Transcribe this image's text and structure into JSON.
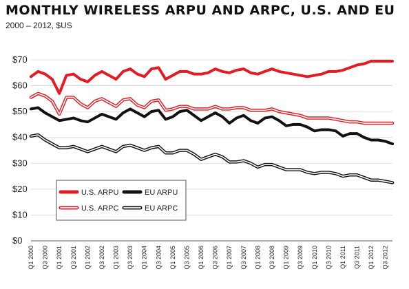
{
  "chart_data": {
    "type": "line",
    "title": "MONTHLY WIRELESS ARPU AND ARPC, U.S. AND EU",
    "subtitle": "2000 – 2012, $US",
    "xlabel": "",
    "ylabel": "",
    "ylim": [
      0,
      70
    ],
    "y_ticks": [
      0,
      10,
      20,
      30,
      40,
      50,
      60,
      70
    ],
    "y_tick_prefix": "$",
    "grid": "horizontal",
    "legend_position": "lower-left",
    "x": [
      "Q1 2000",
      "Q2 2000",
      "Q3 2000",
      "Q4 2000",
      "Q1 2001",
      "Q2 2001",
      "Q3 2001",
      "Q4 2001",
      "Q1 2002",
      "Q2 2002",
      "Q3 2002",
      "Q4 2002",
      "Q1 2003",
      "Q2 2003",
      "Q3 2003",
      "Q4 2003",
      "Q1 2004",
      "Q2 2004",
      "Q3 2004",
      "Q4 2004",
      "Q1 2005",
      "Q2 2005",
      "Q3 2005",
      "Q4 2005",
      "Q1 2006",
      "Q2 2006",
      "Q3 2006",
      "Q4 2006",
      "Q1 2007",
      "Q2 2007",
      "Q3 2007",
      "Q4 2007",
      "Q1 2008",
      "Q2 2008",
      "Q3 2008",
      "Q4 2008",
      "Q1 2009",
      "Q2 2009",
      "Q3 2009",
      "Q4 2009",
      "Q1 2010",
      "Q2 2010",
      "Q3 2010",
      "Q4 2010",
      "Q1 2011",
      "Q2 2011",
      "Q3 2011",
      "Q4 2011",
      "Q1 2012",
      "Q2 2012",
      "Q3 2012",
      "Q4 2012"
    ],
    "x_tick_labels": [
      "Q1 2000",
      "Q3 2000",
      "Q1 2001",
      "Q3 2001",
      "Q1 2002",
      "Q3 2002",
      "Q1 2003",
      "Q3 2003",
      "Q1 2004",
      "Q3 2004",
      "Q1 2005",
      "Q3 2005",
      "Q1 2006",
      "Q3 2006",
      "Q1 2007",
      "Q3 2007",
      "Q1 2008",
      "Q3 2008",
      "Q1 2009",
      "Q3 2009",
      "Q1 2010",
      "Q3 2010",
      "Q1 2011",
      "Q3 2011",
      "Q1 2012",
      "Q3 2012"
    ],
    "series": [
      {
        "name": "U.S. ARPU",
        "color": "#e31b23",
        "style": "solid",
        "values": [
          63.5,
          65.5,
          64.5,
          62.5,
          57.0,
          64.0,
          64.5,
          62.5,
          61.5,
          64.0,
          65.5,
          64.0,
          62.5,
          65.5,
          66.5,
          64.5,
          63.5,
          66.5,
          67.0,
          62.5,
          64.0,
          65.5,
          65.5,
          64.5,
          64.5,
          65.0,
          66.5,
          65.5,
          65.0,
          66.0,
          66.5,
          65.0,
          64.5,
          65.5,
          66.5,
          65.5,
          65.0,
          64.5,
          64.0,
          63.5,
          64.0,
          64.5,
          65.5,
          65.5,
          66.0,
          67.0,
          68.0,
          68.5,
          69.5,
          69.5,
          69.5,
          69.5
        ]
      },
      {
        "name": "U.S. ARPC",
        "color": "#e31b23",
        "style": "outline",
        "values": [
          55.5,
          57.0,
          56.0,
          54.0,
          49.0,
          55.5,
          55.5,
          53.0,
          51.5,
          54.0,
          55.0,
          53.5,
          52.0,
          54.5,
          55.0,
          52.5,
          51.5,
          54.0,
          54.5,
          50.5,
          51.0,
          52.0,
          52.0,
          51.0,
          51.0,
          51.0,
          52.0,
          51.0,
          51.0,
          51.5,
          51.5,
          50.5,
          50.5,
          50.5,
          51.0,
          50.0,
          49.5,
          49.0,
          48.5,
          47.5,
          47.5,
          47.5,
          47.5,
          47.0,
          46.5,
          46.0,
          46.0,
          45.5,
          45.5,
          45.5,
          45.5,
          45.5
        ]
      },
      {
        "name": "EU ARPU",
        "color": "#111111",
        "style": "solid",
        "values": [
          51.0,
          51.5,
          49.5,
          48.0,
          46.5,
          47.0,
          47.5,
          46.5,
          46.0,
          47.5,
          49.0,
          48.0,
          47.0,
          49.5,
          51.0,
          49.5,
          48.0,
          50.0,
          50.5,
          47.0,
          48.0,
          50.0,
          50.5,
          48.5,
          46.5,
          48.0,
          49.5,
          48.0,
          45.5,
          47.5,
          48.5,
          46.5,
          45.5,
          47.5,
          48.0,
          46.5,
          44.5,
          45.0,
          45.0,
          44.0,
          42.5,
          43.0,
          43.0,
          42.5,
          40.5,
          41.5,
          41.5,
          40.0,
          39.0,
          39.0,
          38.5,
          37.5
        ]
      },
      {
        "name": "EU ARPC",
        "color": "#111111",
        "style": "outline",
        "values": [
          40.5,
          41.0,
          39.0,
          37.5,
          36.0,
          36.0,
          36.5,
          35.5,
          34.5,
          35.5,
          36.5,
          35.5,
          34.5,
          36.5,
          37.0,
          36.0,
          35.0,
          36.0,
          36.5,
          34.0,
          34.0,
          35.0,
          35.0,
          33.5,
          31.5,
          32.5,
          33.5,
          32.5,
          30.5,
          30.5,
          31.0,
          30.0,
          28.5,
          29.5,
          29.5,
          28.5,
          27.5,
          27.5,
          27.5,
          26.5,
          26.0,
          26.5,
          26.5,
          26.0,
          25.0,
          25.5,
          25.5,
          24.5,
          23.5,
          23.5,
          23.0,
          22.5
        ]
      }
    ]
  }
}
